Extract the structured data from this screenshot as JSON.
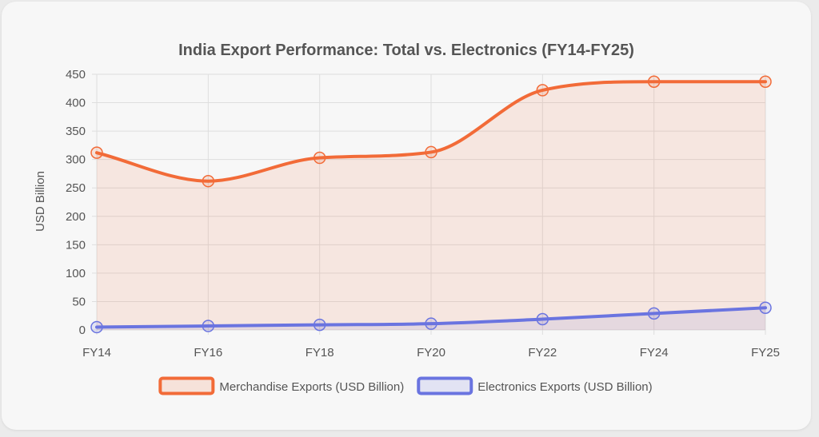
{
  "chart_data": {
    "type": "area",
    "title": "India Export Performance: Total vs. Electronics (FY14-FY25)",
    "xlabel": "",
    "ylabel": "USD Billion",
    "categories": [
      "FY14",
      "FY16",
      "FY18",
      "FY20",
      "FY22",
      "FY24",
      "FY25"
    ],
    "ylim": [
      0,
      450
    ],
    "yticks": [
      "0",
      "50",
      "100",
      "150",
      "200",
      "250",
      "300",
      "350",
      "400",
      "450"
    ],
    "grid": true,
    "legend_position": "bottom",
    "series": [
      {
        "name": "Merchandise Exports (USD Billion)",
        "values": [
          312,
          262,
          303,
          313,
          422,
          437,
          437
        ],
        "color": "#f26b38",
        "fill": "#f26b38"
      },
      {
        "name": "Electronics Exports (USD Billion)",
        "values": [
          5,
          7,
          9,
          11,
          19,
          29,
          39
        ],
        "color": "#6a74e0",
        "fill": "#6a74e0"
      }
    ]
  }
}
